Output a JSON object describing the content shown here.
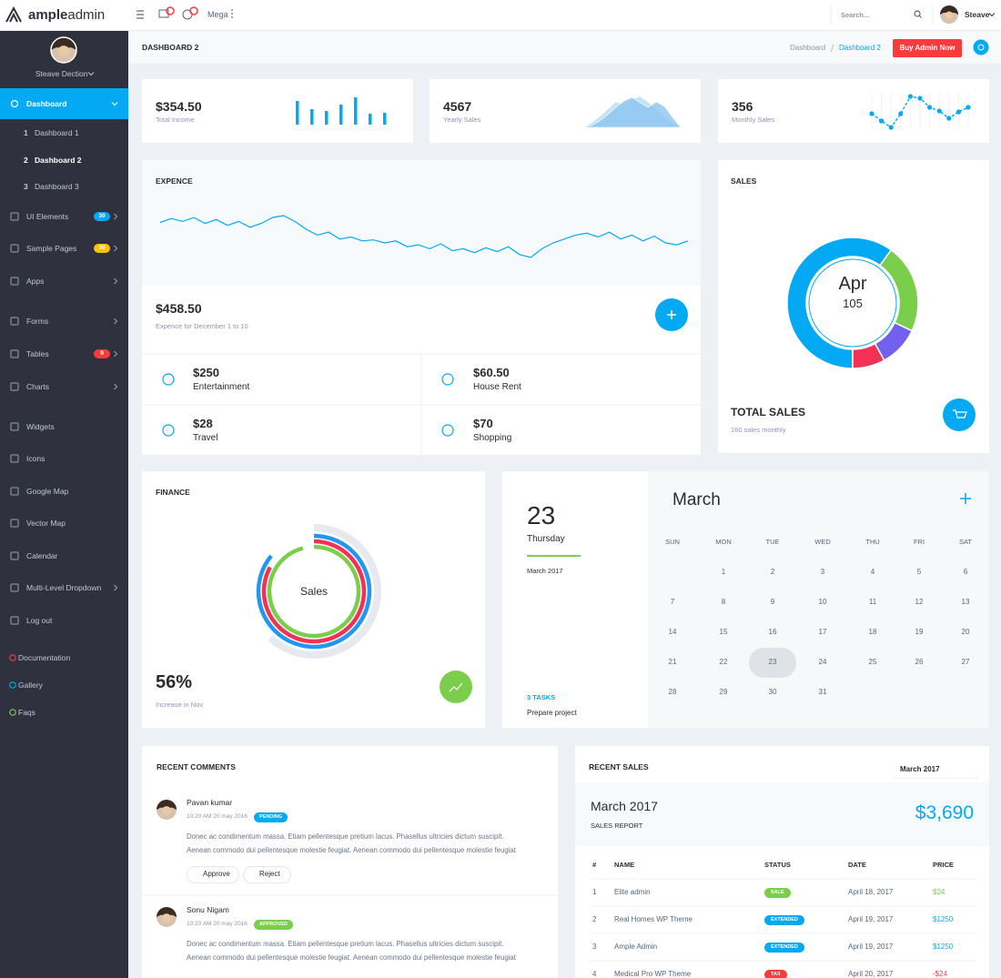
{
  "topbar": {
    "logo": {
      "bold": "ample",
      "light": "admin"
    },
    "mega": "Mega",
    "search": "Search...",
    "user": "Steave"
  },
  "sidebar": {
    "user": "Steave Dection",
    "active": "Dashboard",
    "submenu": [
      {
        "num": 1,
        "label": "Dashboard 1"
      },
      {
        "num": 2,
        "label": "Dashboard 2",
        "current": true
      },
      {
        "num": 3,
        "label": "Dashboard 3"
      }
    ],
    "menu": [
      {
        "label": "UI Elements",
        "badge": 30,
        "badge_color": "#03a9f3",
        "arrow": true
      },
      {
        "label": "Sample Pages",
        "badge": 30,
        "badge_color": "#fec107",
        "arrow": true
      },
      {
        "label": "Apps",
        "arrow": true
      },
      {
        "label": "Forms",
        "arrow": true
      },
      {
        "label": "Tables",
        "badge": 9,
        "badge_color": "#fb3a3a",
        "arrow": true
      },
      {
        "label": "Charts",
        "arrow": true
      },
      {
        "label": "Widgets"
      },
      {
        "label": "Icons"
      },
      {
        "label": "Google Map"
      },
      {
        "label": "Vector Map"
      },
      {
        "label": "Calendar"
      },
      {
        "label": "Multi-Level Dropdown",
        "arrow": true
      },
      {
        "label": "Log out"
      }
    ],
    "links": [
      {
        "label": "Documentation",
        "color": "#fb3a3a"
      },
      {
        "label": "Gallery",
        "color": "#03a9f3"
      },
      {
        "label": "Faqs",
        "color": "#7ace4c"
      }
    ]
  },
  "page": {
    "title": "DASHBOARD 2",
    "breadcrumb": [
      "Dashboard",
      "Dashboard 2"
    ],
    "button": "Buy Admin Now"
  },
  "stats": [
    {
      "value": "$354.50",
      "label": "Total Income",
      "chart": {
        "type": "bar",
        "color": "#03a9f3",
        "values": [
          26,
          17,
          15,
          22,
          30,
          12,
          13
        ]
      }
    },
    {
      "value": "4567",
      "label": "Yearly Sales",
      "chart": {
        "type": "area",
        "series": [
          {
            "color": "#b9dcf7",
            "values": [
              0,
              5,
              12,
              20,
              28,
              25,
              31,
              34,
              28,
              20,
              12,
              5,
              0
            ]
          },
          {
            "color": "#8cc4ef",
            "values": [
              0,
              2,
              7,
              14,
              22,
              29,
              33,
              27,
              22,
              28,
              23,
              11,
              0
            ]
          }
        ]
      }
    },
    {
      "value": "356",
      "label": "Monthly Sales",
      "chart": {
        "type": "line",
        "color": "#03a9f3",
        "values": [
          16,
          8,
          1,
          16,
          35,
          33,
          23,
          19,
          11,
          18,
          23
        ]
      }
    }
  ],
  "expense": {
    "title": "EXPENCE",
    "chart": {
      "type": "line",
      "color": "#03a9f3",
      "values": [
        45,
        49,
        46,
        50,
        44,
        48,
        42,
        46,
        40,
        44,
        50,
        52,
        46,
        38,
        32,
        35,
        28,
        30,
        26,
        27,
        24,
        26,
        20,
        22,
        18,
        23,
        16,
        18,
        14,
        19,
        15,
        20,
        12,
        9,
        18,
        24,
        28,
        32,
        34,
        30,
        35,
        28,
        32,
        26,
        31,
        24,
        22,
        26
      ]
    },
    "total": "$458.50",
    "caption": "Expence for December 1 to 10",
    "items": [
      {
        "amount": "$250",
        "label": "Entertainment"
      },
      {
        "amount": "$60.50",
        "label": "House Rent"
      },
      {
        "amount": "$28",
        "label": "Travel"
      },
      {
        "amount": "$70",
        "label": "Shopping"
      }
    ]
  },
  "sales": {
    "title": "SALES",
    "center_title": "Apr",
    "center_value": 105,
    "chart": {
      "type": "donut",
      "series": [
        {
          "value": 60,
          "color": "#03a9f3"
        },
        {
          "value": 22,
          "color": "#7ace4c"
        },
        {
          "value": 10,
          "color": "#7460ee"
        },
        {
          "value": 8,
          "color": "#f33155"
        }
      ]
    },
    "total_title": "TOTAL SALES",
    "total_caption": "160 sales monthly"
  },
  "finance": {
    "title": "FINANCE",
    "chart": {
      "type": "rings",
      "center": "Sales",
      "series": [
        {
          "value": 62,
          "color": "#e6eaf0"
        },
        {
          "value": 86,
          "color": "#2196f3"
        },
        {
          "value": 83,
          "color": "#f33155"
        },
        {
          "value": 96,
          "color": "#7ace4c"
        }
      ]
    },
    "value": "56%",
    "caption": "Increase in Nov"
  },
  "calendar": {
    "selected": 23,
    "weekday": "Thursday",
    "month_year": "March 2017",
    "tasks": "3 TASKS",
    "task": "Prepare project",
    "month": "March",
    "weekdays": [
      "SUN",
      "MON",
      "TUE",
      "WED",
      "THU",
      "FRI",
      "SAT"
    ],
    "weeks": [
      [
        null,
        1,
        2,
        3,
        4,
        5,
        6
      ],
      [
        7,
        8,
        9,
        10,
        11,
        12,
        13
      ],
      [
        14,
        15,
        16,
        17,
        18,
        19,
        20
      ],
      [
        21,
        22,
        23,
        24,
        25,
        26,
        27
      ],
      [
        28,
        29,
        30,
        31,
        null,
        null,
        null
      ]
    ]
  },
  "comments": {
    "title": "RECENT COMMENTS",
    "items": [
      {
        "name": "Pavan kumar",
        "time": "10:20 AM 20 may 2016",
        "status": "PENDING",
        "status_color": "#03a9f3",
        "text": [
          "Donec ac condimentum massa. Etiam pellentesque pretium lacus. Phasellus ultricies dictum suscipit.",
          "Aenean commodo dui pellentesque molestie feugiat. Aenean commodo dui pellentesque molestie feugiat"
        ],
        "actions": [
          "Approve",
          "Reject"
        ]
      },
      {
        "name": "Sonu Nigam",
        "time": "10:20 AM 20 may 2016",
        "status": "APPROVED",
        "status_color": "#7ace4c",
        "text": [
          "Donec ac condimentum massa. Etiam pellentesque pretium lacus. Phasellus ultricies dictum suscipit.",
          "Aenean commodo dui pellentesque molestie feugiat. Aenean commodo dui pellentesque molestie feugiat"
        ]
      }
    ]
  },
  "recent_sales": {
    "title": "RECENT SALES",
    "select": "March 2017",
    "month": "March 2017",
    "subtitle": "SALES REPORT",
    "total": "$3,690",
    "columns": [
      "#",
      "NAME",
      "STATUS",
      "DATE",
      "PRICE"
    ],
    "rows": [
      {
        "num": 1,
        "name": "Elite admin",
        "status": "SALE",
        "date": "April 18, 2017",
        "price": "$24",
        "color": "#7ace4c"
      },
      {
        "num": 2,
        "name": "Real Homes WP Theme",
        "status": "EXTENDED",
        "date": "April 19, 2017",
        "price": "$1250",
        "color": "#03a9f3"
      },
      {
        "num": 3,
        "name": "Ample Admin",
        "status": "EXTENDED",
        "date": "April 19, 2017",
        "price": "$1250",
        "color": "#03a9f3"
      },
      {
        "num": 4,
        "name": "Medical Pro WP Theme",
        "status": "TAX",
        "date": "April 20, 2017",
        "price": "-$24",
        "color": "#fb3a3a"
      }
    ]
  }
}
